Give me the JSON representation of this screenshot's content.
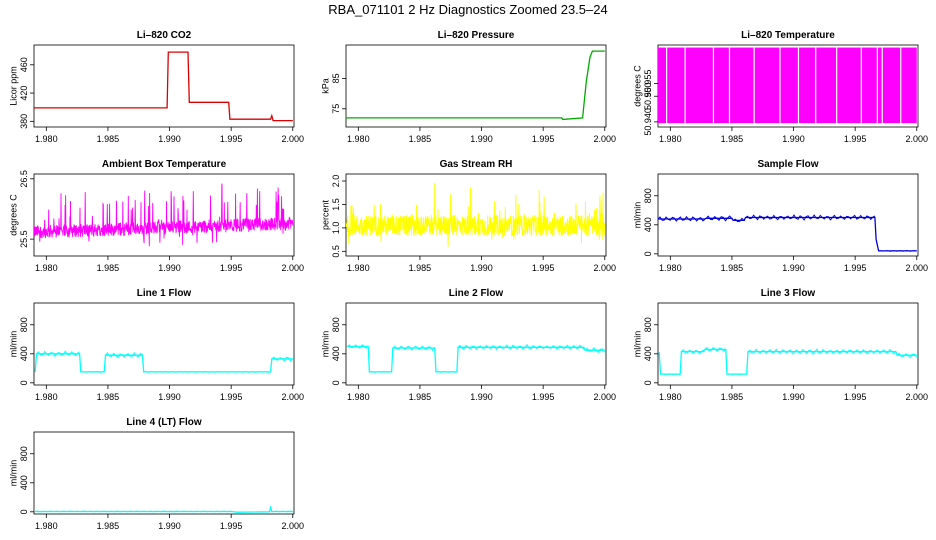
{
  "main_title": "RBA_071101  2 Hz Diagnostics Zoomed 23.5–24",
  "chart_data": [
    {
      "type": "line",
      "title": "Li–820 CO2",
      "ylabel": "Licor ppm",
      "color": "#dd0000",
      "xlim": [
        1.979,
        2.0001
      ],
      "ylim": [
        372,
        488
      ],
      "x_ticks": [
        "1.980",
        "1.985",
        "1.990",
        "1.995",
        "2.000"
      ],
      "y_ticks": [
        "380",
        "420",
        "460"
      ],
      "series": [
        {
          "x": [
            1.979,
            1.9898,
            1.9899,
            1.9915,
            1.9916,
            1.9948,
            1.9949,
            1.9982,
            1.9983,
            1.9984,
            1.9985,
            2.0
          ],
          "y": [
            399,
            399,
            478,
            478,
            407,
            407,
            383,
            383,
            388,
            381,
            381,
            381
          ]
        }
      ]
    },
    {
      "type": "line",
      "title": "Li–820 Pressure",
      "ylabel": "kPa",
      "color": "#00aa00",
      "xlim": [
        1.979,
        2.0001
      ],
      "ylim": [
        69,
        96
      ],
      "x_ticks": [
        "1.980",
        "1.985",
        "1.990",
        "1.995",
        "2.000"
      ],
      "y_ticks": [
        "75",
        "85"
      ],
      "series": [
        {
          "x": [
            1.979,
            1.9965,
            1.9966,
            1.9982,
            1.9985,
            1.9988,
            1.999,
            2.0
          ],
          "y": [
            72,
            72,
            71.5,
            72,
            84,
            92,
            94,
            94
          ]
        }
      ]
    },
    {
      "type": "line",
      "title": "Li–820 Temperature",
      "ylabel": "degrees C",
      "color": "#ff00ff",
      "xlim": [
        1.979,
        2.0001
      ],
      "ylim": [
        50.938,
        50.97
      ],
      "x_ticks": [
        "1.980",
        "1.985",
        "1.990",
        "1.995",
        "2.000"
      ],
      "y_ticks": [
        "50.940",
        "50.950",
        "50.955"
      ],
      "series": [
        {
          "name": "",
          "x": [
            1.979,
            2.0
          ],
          "y": [
            50.9395,
            50.969
          ]
        }
      ]
    },
    {
      "type": "line",
      "title": "Ambient Box Temperature",
      "ylabel": "degrees C",
      "color": "#ff00ff",
      "xlim": [
        1.979,
        2.0001
      ],
      "ylim": [
        25.22,
        26.58
      ],
      "x_ticks": [
        "1.980",
        "1.985",
        "1.990",
        "1.995",
        "2.000"
      ],
      "y_ticks": [
        "25.5",
        "26.5"
      ],
      "series": [
        {
          "x": [
            1.979,
            1.985,
            1.99,
            1.995,
            2.0
          ],
          "y": [
            25.62,
            25.66,
            25.7,
            25.74,
            25.76
          ]
        }
      ]
    },
    {
      "type": "line",
      "title": "Gas Stream RH",
      "ylabel": "percent",
      "color": "#ffff00",
      "xlim": [
        1.979,
        2.0001
      ],
      "ylim": [
        0.4,
        2.15
      ],
      "x_ticks": [
        "1.980",
        "1.985",
        "1.990",
        "1.995",
        "2.000"
      ],
      "y_ticks": [
        "0.5",
        "1.0",
        "1.5",
        "2.0"
      ],
      "series": [
        {
          "x": [
            1.979,
            1.985,
            1.99,
            1.995,
            2.0
          ],
          "y": [
            1.05,
            1.08,
            1.1,
            1.06,
            1.02
          ]
        }
      ]
    },
    {
      "type": "line",
      "title": "Sample Flow",
      "ylabel": "ml/min",
      "color": "#0000dd",
      "xlim": [
        1.979,
        2.0001
      ],
      "ylim": [
        -30,
        1100
      ],
      "x_ticks": [
        "1.980",
        "1.985",
        "1.990",
        "1.995",
        "2.000"
      ],
      "y_ticks": [
        "0",
        "400",
        "800"
      ],
      "series": [
        {
          "x": [
            1.979,
            1.9828,
            1.9829,
            1.985,
            1.9851,
            1.986,
            1.9861,
            1.9966,
            1.9967,
            1.9969,
            2.0
          ],
          "y": [
            480,
            480,
            490,
            490,
            460,
            460,
            500,
            500,
            200,
            40,
            40
          ]
        }
      ]
    },
    {
      "type": "line",
      "title": "Line 1 Flow",
      "ylabel": "ml/min",
      "color": "#00ffff",
      "xlim": [
        1.979,
        2.0001
      ],
      "ylim": [
        -30,
        1100
      ],
      "x_ticks": [
        "1.980",
        "1.985",
        "1.990",
        "1.995",
        "2.000"
      ],
      "y_ticks": [
        "0",
        "400",
        "800"
      ],
      "series": [
        {
          "x": [
            1.9791,
            1.9792,
            1.9827,
            1.9828,
            1.9847,
            1.9848,
            1.9878,
            1.9879,
            1.9982,
            1.9983,
            2.0
          ],
          "y": [
            150,
            400,
            400,
            150,
            150,
            380,
            380,
            150,
            150,
            330,
            330
          ]
        }
      ]
    },
    {
      "type": "line",
      "title": "Line 2 Flow",
      "ylabel": "ml/min",
      "color": "#00ffff",
      "xlim": [
        1.979,
        2.0001
      ],
      "ylim": [
        -30,
        1100
      ],
      "x_ticks": [
        "1.980",
        "1.985",
        "1.990",
        "1.995",
        "2.000"
      ],
      "y_ticks": [
        "0",
        "400",
        "800"
      ],
      "series": [
        {
          "x": [
            1.9791,
            1.9808,
            1.9809,
            1.9827,
            1.9828,
            1.9862,
            1.9863,
            1.988,
            1.9881,
            1.9983,
            1.9984,
            2.0
          ],
          "y": [
            500,
            500,
            150,
            150,
            480,
            480,
            150,
            150,
            490,
            490,
            450,
            450
          ]
        }
      ]
    },
    {
      "type": "line",
      "title": "Line 3 Flow",
      "ylabel": "ml/min",
      "color": "#00ffff",
      "xlim": [
        1.979,
        2.0001
      ],
      "ylim": [
        -30,
        1100
      ],
      "x_ticks": [
        "1.980",
        "1.985",
        "1.990",
        "1.995",
        "2.000"
      ],
      "y_ticks": [
        "0",
        "400",
        "800"
      ],
      "series": [
        {
          "x": [
            1.9791,
            1.9792,
            1.9808,
            1.9809,
            1.9827,
            1.9828,
            1.9845,
            1.9846,
            1.9862,
            1.9863,
            1.9983,
            1.9984,
            2.0
          ],
          "y": [
            420,
            120,
            120,
            430,
            430,
            460,
            460,
            120,
            120,
            430,
            430,
            380,
            380
          ]
        }
      ]
    },
    {
      "type": "line",
      "title": "Line 4 (LT) Flow",
      "ylabel": "ml/min",
      "color": "#00ffff",
      "xlim": [
        1.979,
        2.0001
      ],
      "ylim": [
        -30,
        1100
      ],
      "x_ticks": [
        "1.980",
        "1.985",
        "1.990",
        "1.995",
        "2.000"
      ],
      "y_ticks": [
        "0",
        "400",
        "800"
      ],
      "series": [
        {
          "x": [
            1.9791,
            1.995,
            1.9955,
            1.9981,
            1.9982,
            1.9983,
            1.9985,
            2.0
          ],
          "y": [
            5,
            5,
            -5,
            0,
            60,
            0,
            5,
            5
          ]
        }
      ]
    }
  ]
}
